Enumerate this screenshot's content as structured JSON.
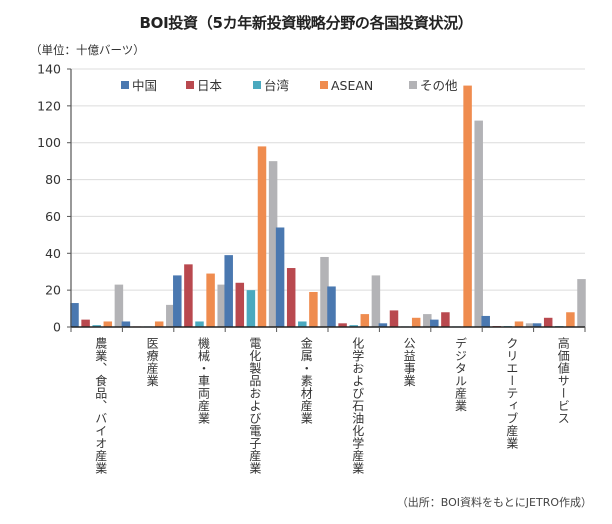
{
  "chart_data": {
    "type": "bar",
    "title": "BOI投資（5カ年新投資戦略分野の各国投資状況）",
    "unit_label": "（単位：十億バーツ）",
    "source": "（出所：BOI資料をもとにJETRO作成）",
    "xlabel": "",
    "ylabel": "",
    "ylim": [
      0,
      140
    ],
    "yticks": [
      0,
      20,
      40,
      60,
      80,
      100,
      120,
      140
    ],
    "grid": true,
    "legend_position": "top",
    "categories": [
      "農業、食品、バイオ産業",
      "医療産業",
      "機械・車両産業",
      "電化製品および電子産業",
      "金属・素材産業",
      "化学および石油化学産業",
      "公益事業",
      "デジタル産業",
      "クリエーティブ産業",
      "高価値サービス"
    ],
    "series": [
      {
        "name": "中国",
        "color": "#4a78b0",
        "values": [
          13,
          3,
          28,
          39,
          54,
          22,
          2,
          4,
          6,
          2
        ]
      },
      {
        "name": "日本",
        "color": "#b9494f",
        "values": [
          4,
          0,
          34,
          24,
          32,
          2,
          9,
          8,
          0.5,
          5
        ]
      },
      {
        "name": "台湾",
        "color": "#4aa9bf",
        "values": [
          1,
          0,
          3,
          20,
          3,
          1,
          0,
          0,
          0.5,
          0.5
        ]
      },
      {
        "name": "ASEAN",
        "color": "#ef8c4f",
        "values": [
          3,
          3,
          29,
          98,
          19,
          7,
          5,
          131,
          3,
          8
        ]
      },
      {
        "name": "その他",
        "color": "#b3b3b6",
        "values": [
          23,
          12,
          23,
          90,
          38,
          28,
          7,
          112,
          2,
          26
        ]
      }
    ]
  }
}
